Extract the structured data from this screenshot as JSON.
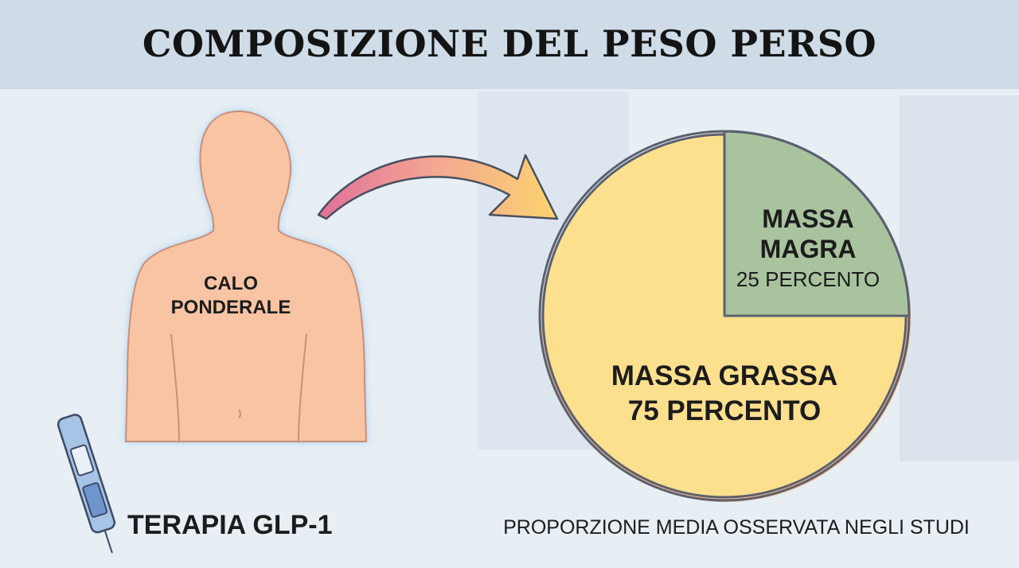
{
  "chart_data": {
    "type": "pie",
    "title": "COMPOSIZIONE DEL PESO PERSO",
    "categories": [
      "MASSA MAGRA",
      "MASSA GRASSA"
    ],
    "values": [
      25,
      75
    ],
    "value_labels": [
      "25 PERCENTO",
      "75 PERCENTO"
    ],
    "colors": [
      "#a9c39f",
      "#fde08e"
    ],
    "caption": "PROPORZIONE MEDIA OSSERVATA NEGLI STUDI"
  },
  "illustration": {
    "body_label": "CALO PONDERALE",
    "pen_label": "TERAPIA GLP-1"
  }
}
